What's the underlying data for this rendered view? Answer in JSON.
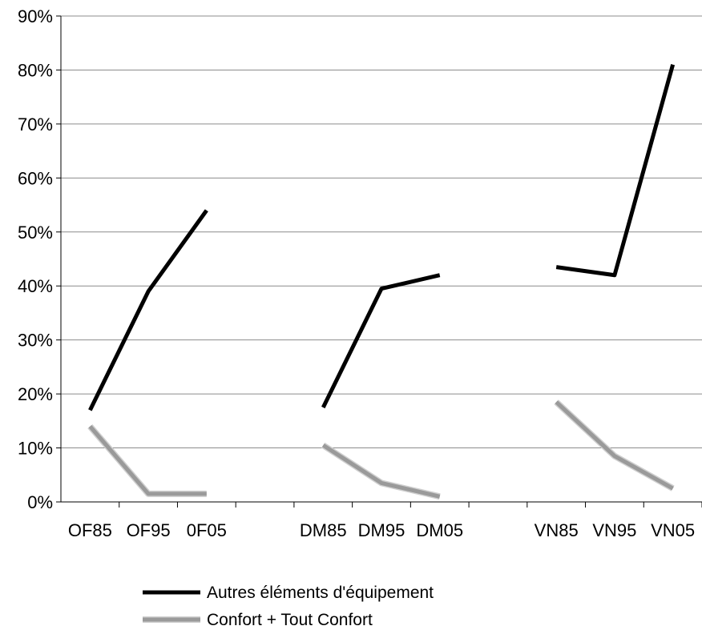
{
  "chart_data": {
    "type": "line",
    "title": "",
    "xlabel": "",
    "ylabel": "",
    "categories": [
      "OF85",
      "OF95",
      "0F05",
      "",
      "DM85",
      "DM95",
      "DM05",
      "",
      "VN85",
      "VN95",
      "VN05"
    ],
    "groups": [
      {
        "categories": [
          "OF85",
          "OF95",
          "0F05"
        ]
      },
      {
        "categories": [
          "DM85",
          "DM95",
          "DM05"
        ]
      },
      {
        "categories": [
          "VN85",
          "VN95",
          "VN05"
        ]
      }
    ],
    "ylim": [
      0,
      90
    ],
    "yticks": [
      "0%",
      "10%",
      "20%",
      "30%",
      "40%",
      "50%",
      "60%",
      "70%",
      "80%",
      "90%"
    ],
    "grid": true,
    "legend_position": "bottom",
    "series": [
      {
        "name": "Autres éléments d'équipement",
        "color": "#000000",
        "values": [
          17,
          39,
          54,
          null,
          17.5,
          39.5,
          42,
          null,
          43.5,
          42,
          81
        ]
      },
      {
        "name": "Confort + Tout Confort",
        "color": "#9a9a9a",
        "values": [
          14,
          1.5,
          1.5,
          null,
          10.5,
          3.5,
          1,
          null,
          18.5,
          8.5,
          2.5
        ]
      }
    ]
  }
}
